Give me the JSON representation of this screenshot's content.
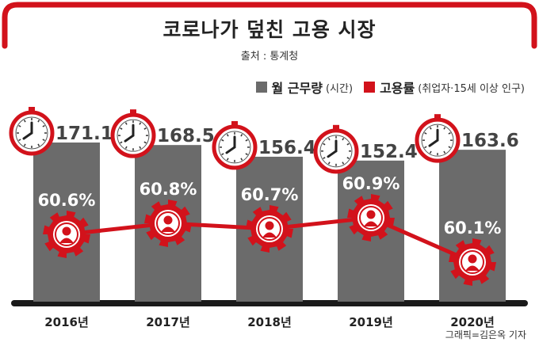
{
  "title": "코로나가 덮친 고용 시장",
  "source": "출처 : 통계청",
  "legend": {
    "hours_label": "월 근무량",
    "hours_note": "(시간)",
    "employment_label": "고용률",
    "employment_note": "(취업자·15세 이상 인구)"
  },
  "credit": "그래픽=김은옥 기자",
  "colors": {
    "bar": "#6b6b6b",
    "accent": "#d2121b",
    "text": "#333333"
  },
  "chart_data": {
    "type": "bar",
    "categories": [
      "2016년",
      "2017년",
      "2018년",
      "2019년",
      "2020년"
    ],
    "series": [
      {
        "name": "월 근무량",
        "type": "bar",
        "values": [
          171.1,
          168.5,
          156.4,
          152.4,
          163.6
        ],
        "labels": [
          "171.1",
          "168.5",
          "156.4",
          "152.4",
          "163.6"
        ]
      },
      {
        "name": "고용률",
        "type": "line",
        "values": [
          60.6,
          60.8,
          60.7,
          60.9,
          60.1
        ],
        "labels": [
          "60.6%",
          "60.8%",
          "60.7%",
          "60.9%",
          "60.1%"
        ]
      }
    ],
    "icons": {
      "bar_top": "clock-icon",
      "line_point": "gear-worker-icon"
    }
  }
}
